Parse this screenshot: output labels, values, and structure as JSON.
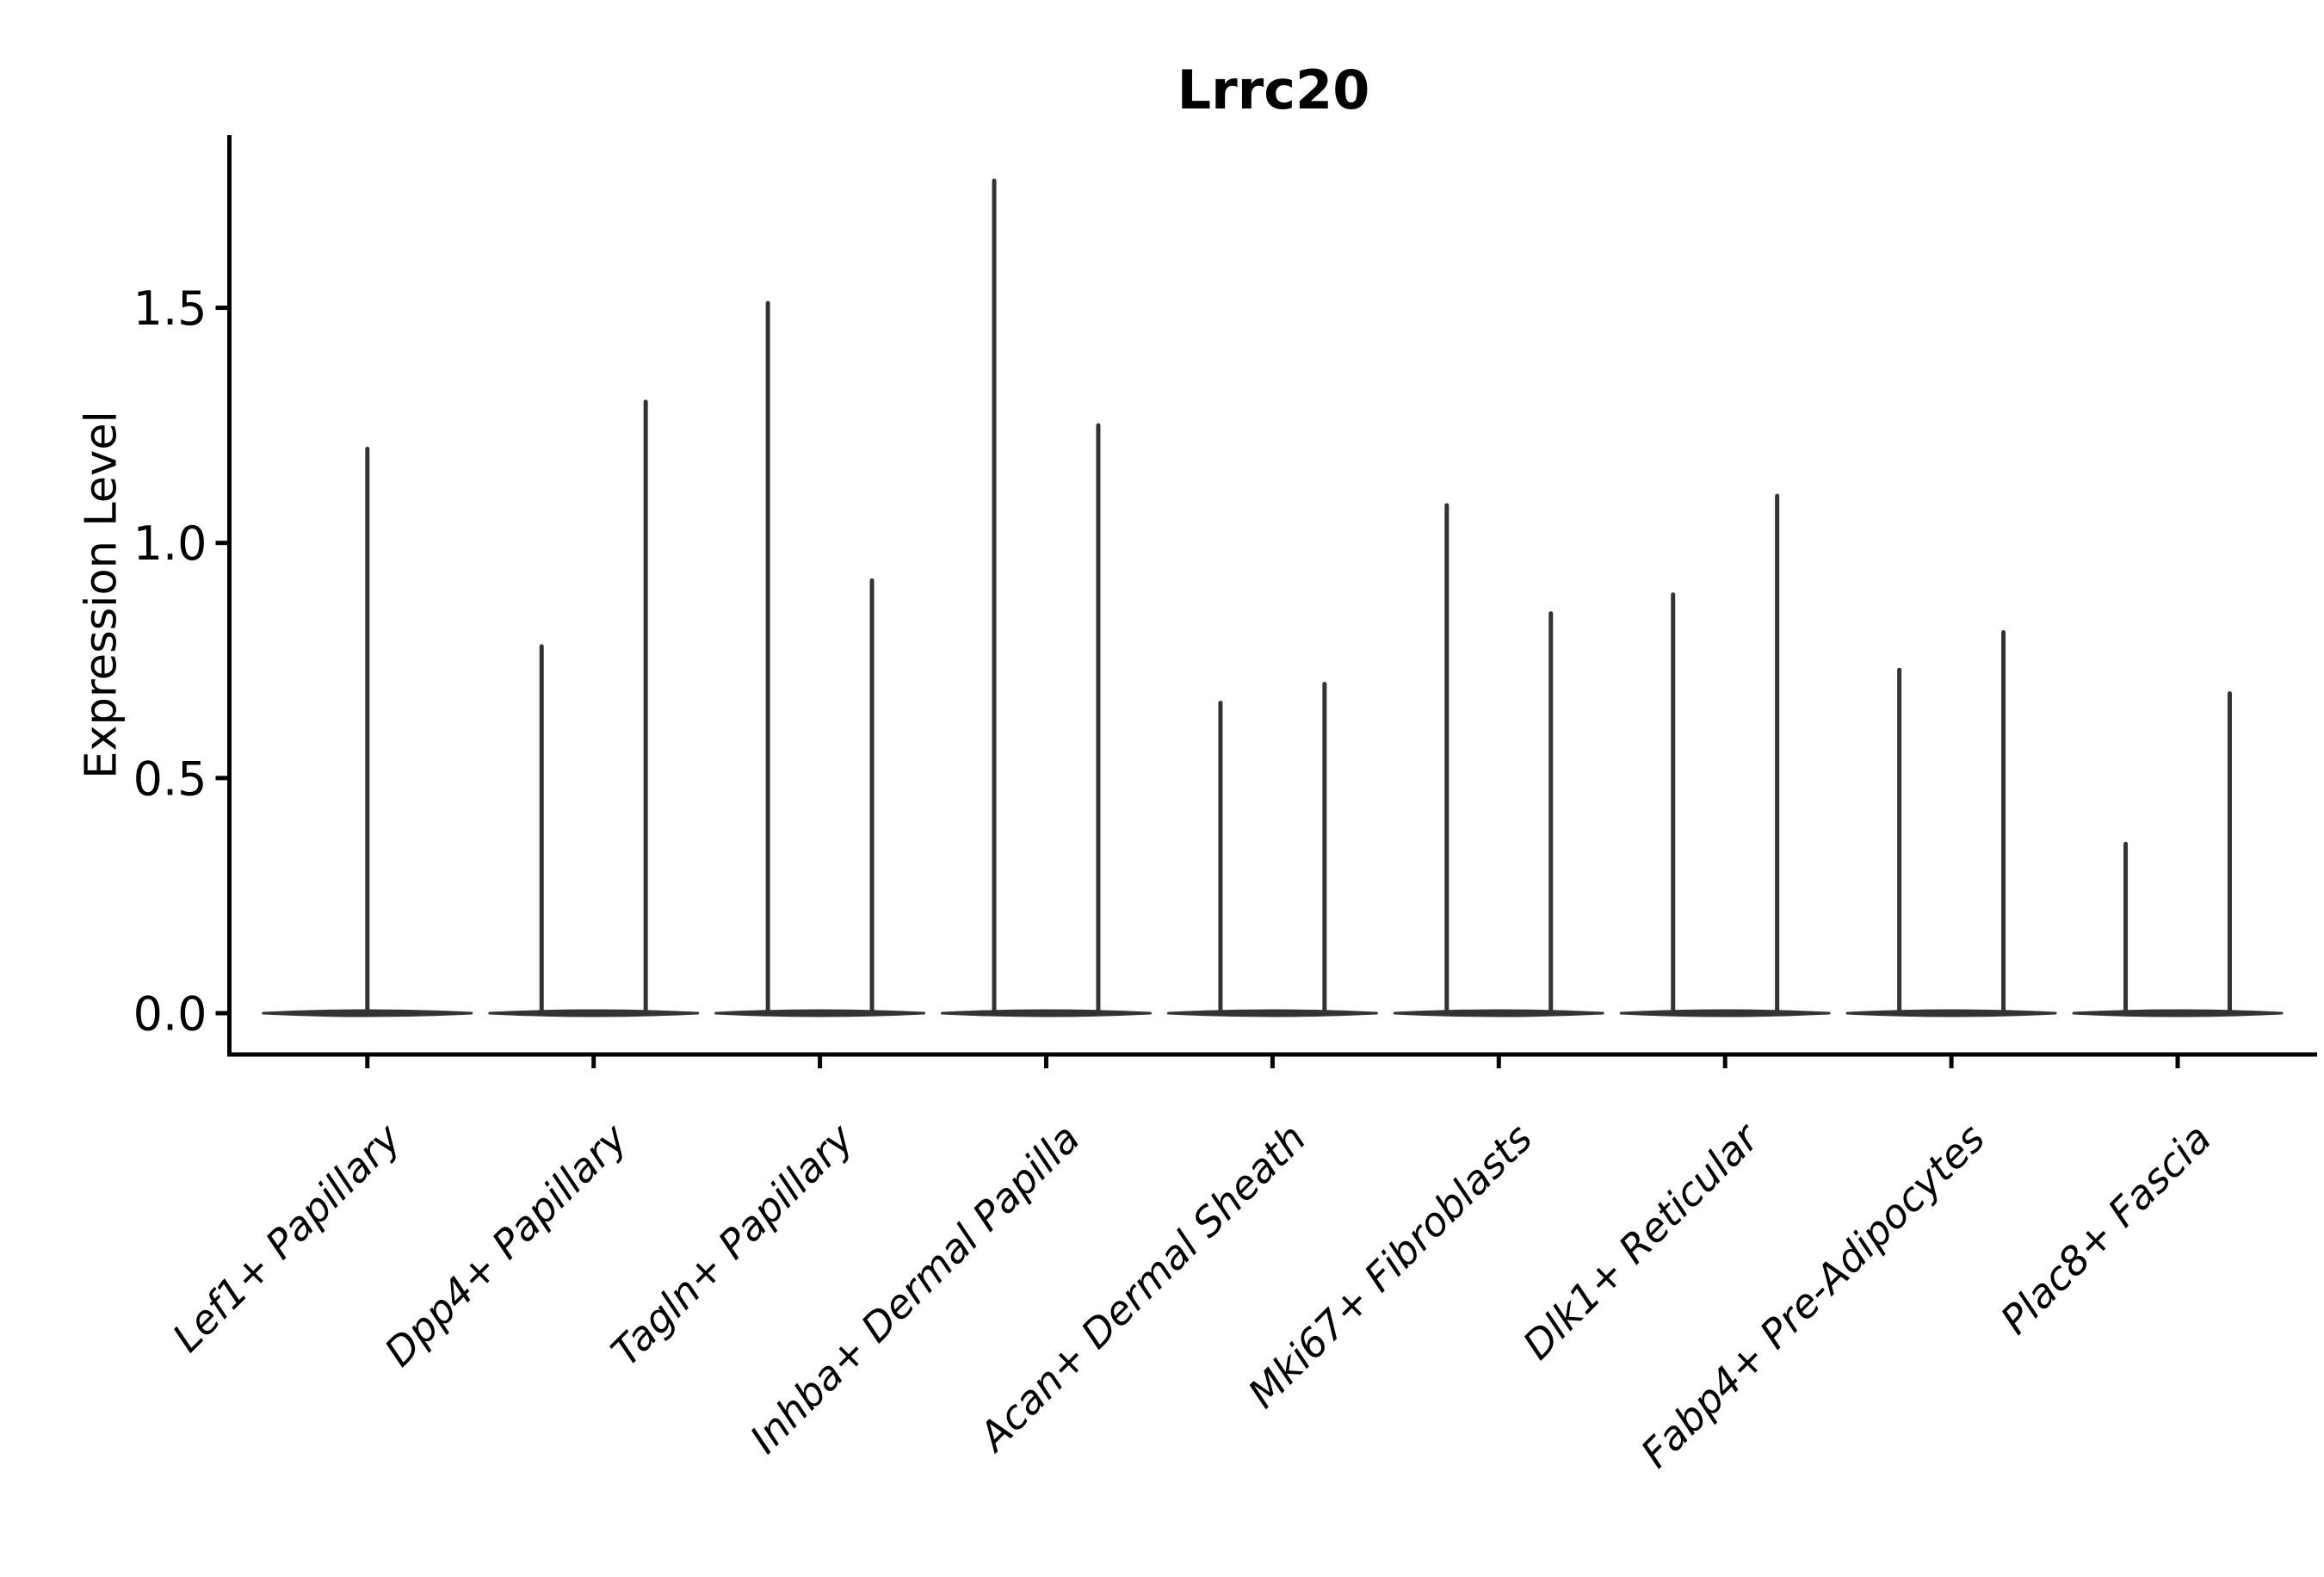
{
  "chart_data": {
    "type": "violin",
    "title": "Lrrc20",
    "ylabel": "Expression Level",
    "xlabel": "",
    "legend": "none",
    "grid": false,
    "style": "spike-violins: each violin collapses to a flat base line at 0 with thin vertical spike(s) up to the max expression value",
    "categories": [
      "Lef1+ Papillary",
      "Dpp4+ Papillary",
      "Tagln+ Papillary",
      "Inhba+ Dermal Papilla",
      "Acan+ Dermal Sheath",
      "Mki67+ Fibroblasts",
      "Dlk1+ Reticular",
      "Fabp4+ Pre-Adipocytes",
      "Plac8+ Fascia"
    ],
    "series": [
      {
        "category": "Lef1+ Papillary",
        "spikes": [
          {
            "offset": 0,
            "max": 1.2
          }
        ]
      },
      {
        "category": "Dpp4+ Papillary",
        "spikes": [
          {
            "offset": -0.23,
            "max": 0.78
          },
          {
            "offset": 0.23,
            "max": 1.3
          }
        ]
      },
      {
        "category": "Tagln+ Papillary",
        "spikes": [
          {
            "offset": -0.23,
            "max": 1.51
          },
          {
            "offset": 0.23,
            "max": 0.92
          }
        ]
      },
      {
        "category": "Inhba+ Dermal Papilla",
        "spikes": [
          {
            "offset": -0.23,
            "max": 1.77
          },
          {
            "offset": 0.23,
            "max": 1.25
          }
        ]
      },
      {
        "category": "Acan+ Dermal Sheath",
        "spikes": [
          {
            "offset": -0.23,
            "max": 0.66
          },
          {
            "offset": 0.23,
            "max": 0.7
          }
        ]
      },
      {
        "category": "Mki67+ Fibroblasts",
        "spikes": [
          {
            "offset": -0.23,
            "max": 1.08
          },
          {
            "offset": 0.23,
            "max": 0.85
          }
        ]
      },
      {
        "category": "Dlk1+ Reticular",
        "spikes": [
          {
            "offset": -0.23,
            "max": 0.89
          },
          {
            "offset": 0.23,
            "max": 1.1
          }
        ]
      },
      {
        "category": "Fabp4+ Pre-Adipocytes",
        "spikes": [
          {
            "offset": -0.23,
            "max": 0.73
          },
          {
            "offset": 0.23,
            "max": 0.81
          }
        ]
      },
      {
        "category": "Plac8+ Fascia",
        "spikes": [
          {
            "offset": -0.23,
            "max": 0.36
          },
          {
            "offset": 0.23,
            "max": 0.68
          }
        ]
      }
    ],
    "yticks": [
      "0.0",
      "0.5",
      "1.0",
      "1.5"
    ],
    "ylim": [
      -0.09,
      1.87
    ],
    "violin_base_halfwidth": 0.46,
    "colors": {
      "violin_line": "#333333",
      "axis": "#000000",
      "text": "#000000",
      "background": "#ffffff"
    }
  }
}
